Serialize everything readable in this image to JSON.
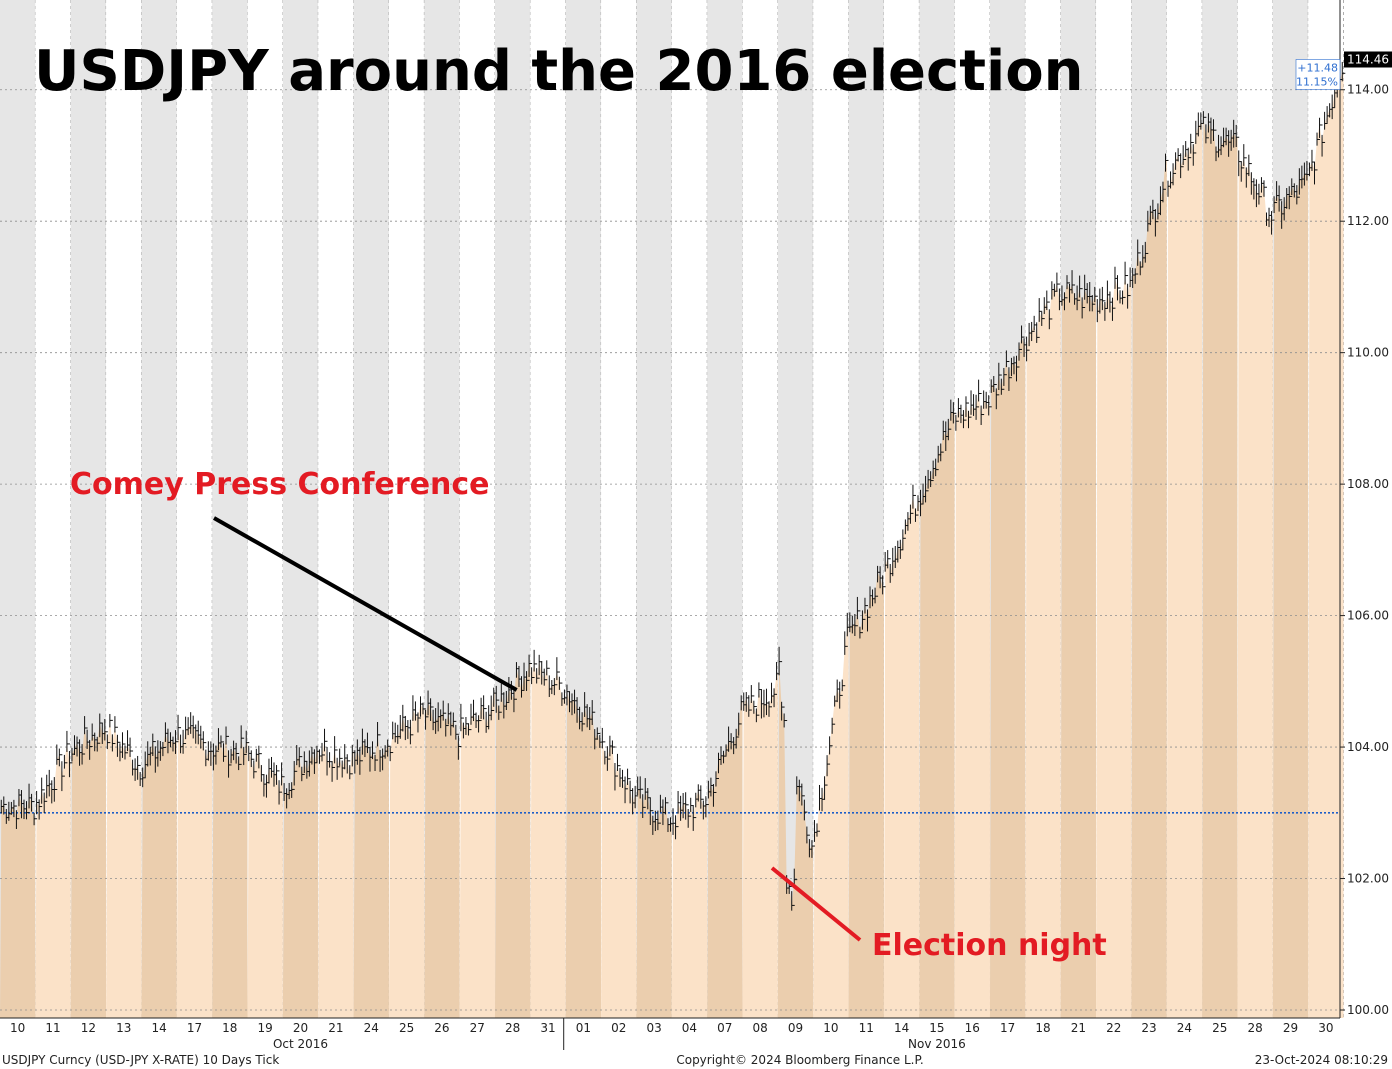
{
  "chart_data": {
    "type": "area",
    "title": "USDJPY around the 2016 election",
    "instrument": "USDJPY Curncy (USD-JPY X-RATE) 10 Days  Tick",
    "copyright": "Copyright© 2024 Bloomberg Finance L.P.",
    "timestamp": "23-Oct-2024 08:10:29",
    "ylim": [
      100,
      115
    ],
    "yticks": [
      "100.00",
      "102.00",
      "104.00",
      "106.00",
      "108.00",
      "110.00",
      "112.00",
      "114.00"
    ],
    "categories": [
      "10",
      "11",
      "12",
      "13",
      "14",
      "17",
      "18",
      "19",
      "20",
      "21",
      "24",
      "25",
      "26",
      "27",
      "28",
      "31",
      "01",
      "02",
      "03",
      "04",
      "07",
      "08",
      "09",
      "10",
      "11",
      "14",
      "15",
      "16",
      "17",
      "18",
      "21",
      "22",
      "23",
      "24",
      "25",
      "28",
      "29",
      "30"
    ],
    "months": [
      "Oct 2016",
      "Nov 2016"
    ],
    "reference_level": 103.0,
    "last_price": "114.46",
    "change_abs": "+11.48",
    "change_pct": "11.15%",
    "series": [
      {
        "values": [
          103.1,
          103.9,
          104.3,
          103.7,
          104.2,
          104.0,
          103.9,
          103.4,
          104.0,
          103.8,
          104.1,
          104.5,
          104.2,
          104.6,
          105.2,
          104.9,
          104.2,
          103.2,
          102.9,
          103.2,
          104.5,
          104.9,
          102.5,
          105.6,
          106.6,
          107.8,
          109.0,
          109.3,
          110.2,
          110.9,
          110.8,
          111.0,
          112.7,
          113.4,
          113.1,
          112.1,
          112.6,
          114.4
        ]
      }
    ],
    "annotations": [
      {
        "text": "Comey Press Conference",
        "category": "28",
        "color": "#e31b23"
      },
      {
        "text": "Election night",
        "category": "09",
        "color": "#e31b23"
      }
    ]
  }
}
